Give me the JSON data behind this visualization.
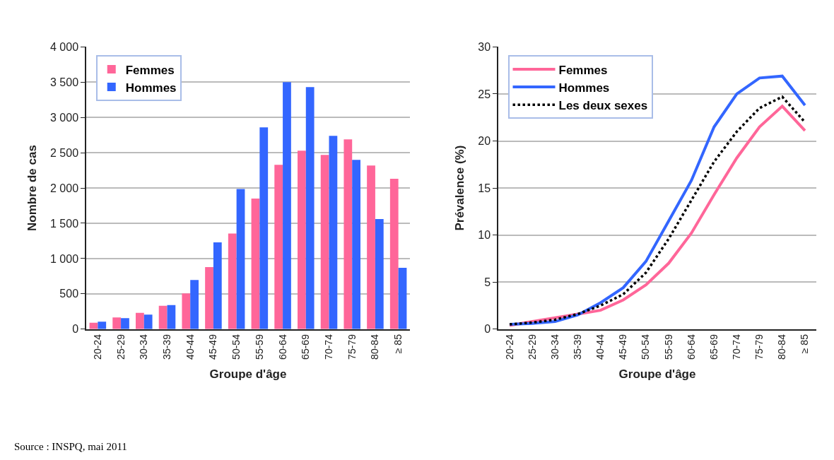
{
  "chart_data": [
    {
      "type": "bar",
      "xlabel": "Groupe d'âge",
      "ylabel": "Nombre de cas",
      "categories": [
        "20-24",
        "25-29",
        "30-34",
        "35-39",
        "40-44",
        "45-49",
        "50-54",
        "55-59",
        "60-64",
        "65-69",
        "70-74",
        "75-79",
        "80-84",
        "≥ 85"
      ],
      "series": [
        {
          "name": "Femmes",
          "color": "#ff6699",
          "values": [
            90,
            165,
            230,
            330,
            505,
            880,
            1355,
            1850,
            2330,
            2530,
            2470,
            2690,
            2320,
            2130
          ]
        },
        {
          "name": "Hommes",
          "color": "#3366ff",
          "values": [
            105,
            155,
            205,
            340,
            695,
            1230,
            1985,
            2860,
            3500,
            3430,
            2740,
            2400,
            1560,
            870
          ]
        }
      ],
      "ylim": [
        0,
        4000
      ],
      "yticks": [
        0,
        500,
        {
          "value": 1000,
          "label": "1 000"
        },
        {
          "value": 1500,
          "label": "1 500"
        },
        {
          "value": 2000,
          "label": "2 000"
        },
        {
          "value": 2500,
          "label": "2 500"
        },
        {
          "value": 3000,
          "label": "3 000"
        },
        {
          "value": 3500,
          "label": "3 500"
        },
        {
          "value": 4000,
          "label": "4 000"
        }
      ],
      "grid": "y",
      "legend": "top left",
      "annotations": [
        "Source : INSPQ, mai 2011"
      ]
    },
    {
      "type": "line",
      "xlabel": "Groupe d'âge",
      "ylabel": "Prévalence (%)",
      "categories": [
        "20-24",
        "25-29",
        "30-34",
        "35-39",
        "40-44",
        "45-49",
        "50-54",
        "55-59",
        "60-64",
        "65-69",
        "70-74",
        "75-79",
        "80-84",
        "≥ 85"
      ],
      "series": [
        {
          "name": "Femmes",
          "color": "#ff6699",
          "line_style": "solid",
          "values": [
            0.4,
            0.8,
            1.2,
            1.6,
            2.0,
            3.1,
            4.7,
            7.0,
            10.2,
            14.3,
            18.2,
            21.5,
            23.7,
            21.1
          ]
        },
        {
          "name": "Hommes",
          "color": "#3366ff",
          "line_style": "solid",
          "values": [
            0.5,
            0.6,
            0.8,
            1.5,
            2.8,
            4.4,
            7.2,
            11.5,
            15.8,
            21.5,
            25.0,
            26.7,
            26.9,
            23.8
          ]
        },
        {
          "name": "Les deux sexes",
          "color": "#000000",
          "line_style": "dotted",
          "values": [
            0.5,
            0.7,
            1.0,
            1.6,
            2.5,
            3.7,
            6.0,
            9.6,
            13.7,
            17.8,
            21.0,
            23.5,
            24.7,
            22.0
          ]
        }
      ],
      "ylim": [
        0,
        30
      ],
      "yticks": [
        0,
        5,
        10,
        15,
        20,
        25,
        30
      ],
      "grid": "y",
      "legend": "top left"
    }
  ]
}
